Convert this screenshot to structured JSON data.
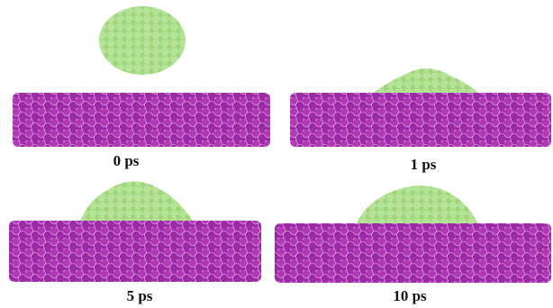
{
  "panels": [
    {
      "label": "0 ps"
    },
    {
      "label": "1 ps"
    },
    {
      "label": "5 ps"
    },
    {
      "label": "10 ps"
    }
  ]
}
